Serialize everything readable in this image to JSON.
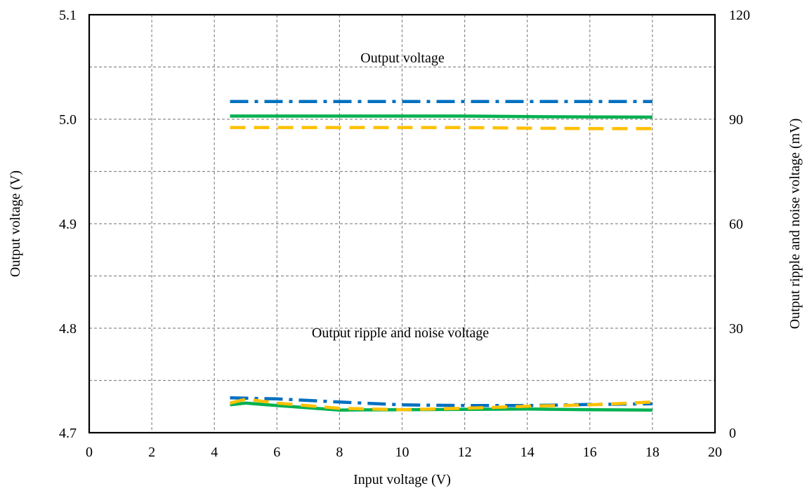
{
  "chart_data": {
    "type": "line",
    "xlabel": "Input voltage (V)",
    "ylabel": "Output voltage (V)",
    "y2label": "Output ripple  and noise voltage (mV)",
    "xlim": [
      0,
      20
    ],
    "ylim": [
      4.7,
      5.1
    ],
    "y2lim": [
      0,
      120
    ],
    "x_ticks": [
      "0",
      "2",
      "4",
      "6",
      "8",
      "10",
      "12",
      "14",
      "16",
      "18",
      "20"
    ],
    "y_ticks": [
      "4.7",
      "4.8",
      "4.9",
      "5.0",
      "5.1"
    ],
    "y2_ticks": [
      "0",
      "30",
      "60",
      "90",
      "120"
    ],
    "grid": true,
    "annotations": {
      "output_voltage": "Output voltage",
      "ripple": "Output ripple  and noise voltage"
    },
    "series": [
      {
        "axis": "left",
        "color": "#0070C0",
        "dash": "dashdot",
        "x": [
          4.5,
          6,
          8,
          10,
          12,
          14,
          16,
          18
        ],
        "values": [
          5.017,
          5.017,
          5.017,
          5.017,
          5.017,
          5.017,
          5.017,
          5.017
        ]
      },
      {
        "axis": "left",
        "color": "#00B050",
        "dash": "solid",
        "x": [
          4.5,
          6,
          8,
          10,
          12,
          14,
          16,
          18
        ],
        "values": [
          5.003,
          5.003,
          5.003,
          5.003,
          5.003,
          5.0025,
          5.0022,
          5.002
        ]
      },
      {
        "axis": "left",
        "color": "#FFC000",
        "dash": "dash",
        "x": [
          4.5,
          6,
          8,
          10,
          12,
          14,
          16,
          18
        ],
        "values": [
          4.992,
          4.992,
          4.992,
          4.992,
          4.992,
          4.9915,
          4.991,
          4.991
        ]
      },
      {
        "axis": "right",
        "color": "#0070C0",
        "dash": "dashdot",
        "x": [
          4.5,
          6,
          8,
          10,
          12,
          14,
          16,
          18
        ],
        "values": [
          10,
          9.7,
          8.8,
          8.0,
          7.8,
          7.8,
          8.1,
          8.3
        ]
      },
      {
        "axis": "right",
        "color": "#00B050",
        "dash": "solid",
        "x": [
          4.5,
          5,
          6,
          8,
          10,
          12,
          14,
          16,
          18
        ],
        "values": [
          8.0,
          8.5,
          7.8,
          6.5,
          6.6,
          6.7,
          6.8,
          6.6,
          6.5
        ]
      },
      {
        "axis": "right",
        "color": "#FFC000",
        "dash": "dash",
        "x": [
          4.5,
          5,
          6,
          8,
          10,
          12,
          14,
          16,
          18
        ],
        "values": [
          8.5,
          9.6,
          8.5,
          7.0,
          6.6,
          7.0,
          7.6,
          8.0,
          8.8
        ]
      }
    ]
  }
}
